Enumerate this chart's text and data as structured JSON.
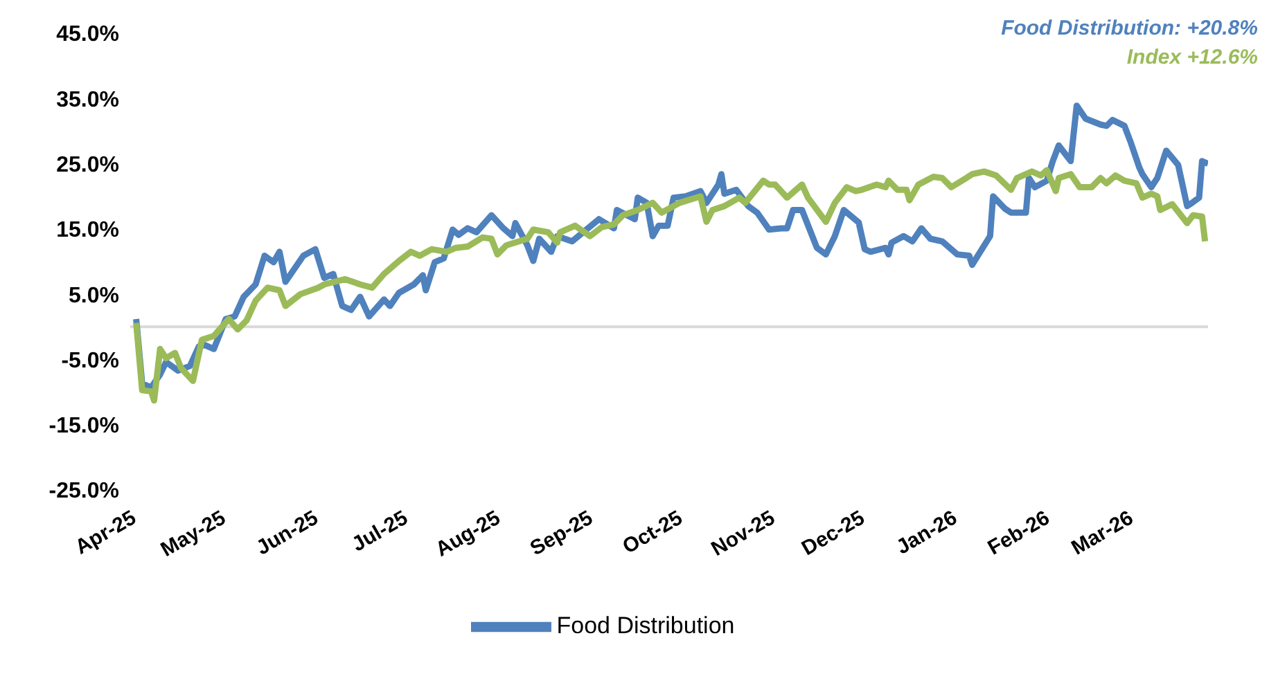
{
  "chart_data": {
    "type": "line",
    "annotations": [
      "Food Distribution: +20.8%",
      "Index +12.6%"
    ],
    "xlim": [
      "2025-04-01",
      "2026-03-28"
    ],
    "xticks": [
      {
        "value": "2025-04-01",
        "label": "Apr-25"
      },
      {
        "value": "2025-05-01",
        "label": "May-25"
      },
      {
        "value": "2025-06-01",
        "label": "Jun-25"
      },
      {
        "value": "2025-07-01",
        "label": "Jul-25"
      },
      {
        "value": "2025-08-01",
        "label": "Aug-25"
      },
      {
        "value": "2025-09-01",
        "label": "Sep-25"
      },
      {
        "value": "2025-10-01",
        "label": "Oct-25"
      },
      {
        "value": "2025-11-01",
        "label": "Nov-25"
      },
      {
        "value": "2025-12-01",
        "label": "Dec-25"
      },
      {
        "value": "2026-01-01",
        "label": "Jan-26"
      },
      {
        "value": "2026-02-01",
        "label": "Feb-26"
      },
      {
        "value": "2026-03-01",
        "label": "Mar-26"
      }
    ],
    "ylim": [
      -25,
      45
    ],
    "yticks": [
      {
        "value": -25,
        "label": "-25.0%"
      },
      {
        "value": -15,
        "label": "-15.0%"
      },
      {
        "value": -5,
        "label": "-5.0%"
      },
      {
        "value": 5,
        "label": "5.0%"
      },
      {
        "value": 15,
        "label": "15.0%"
      },
      {
        "value": 25,
        "label": "25.0%"
      },
      {
        "value": 35,
        "label": "35.0%"
      },
      {
        "value": 45,
        "label": "45.0%"
      }
    ],
    "grid": false,
    "legend": "bottom",
    "marker": "none",
    "line_style": "solid",
    "series": [
      {
        "name": "Food Distribution",
        "color": "#4f81bd",
        "x": [
          "2025-04-03",
          "2025-04-05",
          "2025-04-08",
          "2025-04-11",
          "2025-04-13",
          "2025-04-17",
          "2025-04-21",
          "2025-04-24",
          "2025-04-26",
          "2025-04-29",
          "2025-05-03",
          "2025-05-06",
          "2025-05-09",
          "2025-05-13",
          "2025-05-16",
          "2025-05-19",
          "2025-05-21",
          "2025-05-23",
          "2025-05-29",
          "2025-06-02",
          "2025-06-05",
          "2025-06-08",
          "2025-06-11",
          "2025-06-14",
          "2025-06-17",
          "2025-06-20",
          "2025-06-25",
          "2025-06-27",
          "2025-06-30",
          "2025-07-05",
          "2025-07-08",
          "2025-07-09",
          "2025-07-12",
          "2025-07-15",
          "2025-07-18",
          "2025-07-20",
          "2025-07-23",
          "2025-07-26",
          "2025-07-31",
          "2025-08-04",
          "2025-08-07",
          "2025-08-08",
          "2025-08-12",
          "2025-08-14",
          "2025-08-16",
          "2025-08-20",
          "2025-08-22",
          "2025-08-27",
          "2025-09-05",
          "2025-09-10",
          "2025-09-11",
          "2025-09-17",
          "2025-09-18",
          "2025-09-21",
          "2025-09-23",
          "2025-09-25",
          "2025-09-28",
          "2025-09-30",
          "2025-10-04",
          "2025-10-09",
          "2025-10-11",
          "2025-10-15",
          "2025-10-16",
          "2025-10-17",
          "2025-10-21",
          "2025-10-25",
          "2025-10-28",
          "2025-11-01",
          "2025-11-05",
          "2025-11-07",
          "2025-11-09",
          "2025-11-12",
          "2025-11-17",
          "2025-11-20",
          "2025-11-23",
          "2025-11-26",
          "2025-12-01",
          "2025-12-03",
          "2025-12-05",
          "2025-12-10",
          "2025-12-11",
          "2025-12-12",
          "2025-12-16",
          "2025-12-19",
          "2025-12-22",
          "2025-12-25",
          "2025-12-29",
          "2026-01-03",
          "2026-01-07",
          "2026-01-08",
          "2026-01-14",
          "2026-01-15",
          "2026-01-19",
          "2026-01-21",
          "2026-01-26",
          "2026-01-27",
          "2026-01-29",
          "2026-02-02",
          "2026-02-04",
          "2026-02-06",
          "2026-02-10",
          "2026-02-12",
          "2026-02-15",
          "2026-02-20",
          "2026-02-22",
          "2026-02-24",
          "2026-02-28",
          "2026-03-02",
          "2026-03-05",
          "2026-03-06",
          "2026-03-09",
          "2026-03-11",
          "2026-03-14",
          "2026-03-18",
          "2026-03-21",
          "2026-03-22",
          "2026-03-25",
          "2026-03-26",
          "2026-03-28"
        ],
        "values": [
          1.2,
          -8.7,
          -9.3,
          -7.3,
          -5.4,
          -6.7,
          -6.0,
          -3.0,
          -2.8,
          -3.4,
          1.2,
          1.6,
          4.6,
          6.5,
          10.9,
          9.9,
          11.5,
          6.9,
          10.9,
          11.9,
          7.5,
          8.1,
          3.2,
          2.6,
          4.6,
          1.6,
          4.2,
          3.2,
          5.2,
          6.5,
          7.9,
          5.6,
          9.9,
          10.5,
          14.9,
          14.1,
          15.1,
          14.5,
          17.1,
          15.1,
          13.9,
          15.9,
          12.5,
          10.1,
          13.5,
          11.5,
          13.9,
          13.1,
          16.5,
          15.1,
          17.9,
          16.5,
          19.8,
          19.0,
          13.9,
          15.5,
          15.5,
          19.8,
          20.0,
          20.8,
          19.0,
          21.8,
          23.4,
          20.4,
          21.0,
          18.5,
          17.5,
          14.9,
          15.1,
          15.1,
          17.9,
          17.9,
          12.1,
          11.1,
          13.9,
          17.9,
          16.0,
          11.9,
          11.5,
          12.1,
          11.1,
          12.9,
          13.9,
          13.1,
          15.1,
          13.5,
          13.1,
          11.1,
          10.9,
          9.5,
          13.9,
          20.0,
          18.1,
          17.5,
          17.5,
          22.8,
          21.4,
          22.4,
          25.4,
          27.8,
          25.4,
          33.9,
          31.9,
          31.0,
          30.8,
          31.7,
          30.8,
          28.4,
          24.4,
          23.4,
          21.4,
          22.8,
          27.0,
          24.8,
          18.5,
          18.8,
          19.8,
          25.4,
          25.0
        ]
      },
      {
        "color": "#9bbb59",
        "x": [
          "2025-04-03",
          "2025-04-05",
          "2025-04-08",
          "2025-04-09",
          "2025-04-11",
          "2025-04-13",
          "2025-04-16",
          "2025-04-18",
          "2025-04-22",
          "2025-04-25",
          "2025-04-29",
          "2025-05-04",
          "2025-05-07",
          "2025-05-10",
          "2025-05-13",
          "2025-05-17",
          "2025-05-21",
          "2025-05-23",
          "2025-05-28",
          "2025-06-03",
          "2025-06-05",
          "2025-06-12",
          "2025-06-17",
          "2025-06-21",
          "2025-06-25",
          "2025-06-30",
          "2025-07-04",
          "2025-07-07",
          "2025-07-11",
          "2025-07-16",
          "2025-07-19",
          "2025-07-23",
          "2025-07-28",
          "2025-07-31",
          "2025-08-02",
          "2025-08-05",
          "2025-08-12",
          "2025-08-14",
          "2025-08-19",
          "2025-08-22",
          "2025-08-23",
          "2025-08-28",
          "2025-09-02",
          "2025-09-06",
          "2025-09-10",
          "2025-09-13",
          "2025-09-18",
          "2025-09-23",
          "2025-09-26",
          "2025-10-02",
          "2025-10-09",
          "2025-10-11",
          "2025-10-13",
          "2025-10-17",
          "2025-10-22",
          "2025-10-24",
          "2025-10-30",
          "2025-11-01",
          "2025-11-03",
          "2025-11-07",
          "2025-11-12",
          "2025-11-14",
          "2025-11-20",
          "2025-11-23",
          "2025-11-27",
          "2025-11-30",
          "2025-12-02",
          "2025-12-07",
          "2025-12-10",
          "2025-12-11",
          "2025-12-14",
          "2025-12-17",
          "2025-12-18",
          "2025-12-21",
          "2025-12-26",
          "2025-12-29",
          "2026-01-01",
          "2026-01-06",
          "2026-01-08",
          "2026-01-12",
          "2026-01-16",
          "2026-01-21",
          "2026-01-23",
          "2026-01-28",
          "2026-01-31",
          "2026-02-02",
          "2026-02-05",
          "2026-02-06",
          "2026-02-10",
          "2026-02-13",
          "2026-02-17",
          "2026-02-20",
          "2026-02-22",
          "2026-02-25",
          "2026-02-28",
          "2026-03-04",
          "2026-03-06",
          "2026-03-09",
          "2026-03-11",
          "2026-03-12",
          "2026-03-16",
          "2026-03-21",
          "2026-03-23",
          "2026-03-26",
          "2026-03-27"
        ],
        "values": [
          0.6,
          -9.7,
          -9.9,
          -11.3,
          -3.4,
          -4.8,
          -4.0,
          -6.3,
          -8.3,
          -2.0,
          -1.4,
          1.2,
          -0.4,
          1.0,
          4.0,
          6.0,
          5.6,
          3.2,
          5.0,
          6.0,
          6.5,
          7.3,
          6.5,
          6.0,
          8.1,
          10.1,
          11.5,
          10.9,
          11.9,
          11.5,
          12.1,
          12.3,
          13.7,
          13.5,
          11.1,
          12.5,
          13.5,
          14.9,
          14.5,
          12.9,
          14.5,
          15.5,
          13.9,
          15.3,
          15.7,
          17.1,
          17.9,
          19.0,
          17.5,
          19.0,
          20.0,
          16.1,
          17.9,
          18.5,
          19.8,
          19.0,
          22.4,
          21.8,
          21.8,
          19.8,
          21.8,
          19.8,
          16.1,
          19.0,
          21.4,
          20.8,
          21.0,
          21.8,
          21.4,
          22.4,
          21.0,
          21.0,
          19.4,
          21.8,
          23.0,
          22.8,
          21.4,
          22.8,
          23.4,
          23.8,
          23.2,
          21.0,
          22.8,
          23.8,
          23.2,
          24.0,
          20.8,
          22.8,
          23.4,
          21.4,
          21.4,
          22.8,
          22.0,
          23.2,
          22.4,
          22.0,
          19.8,
          20.4,
          20.0,
          17.9,
          18.8,
          15.9,
          17.1,
          16.9,
          13.1
        ]
      }
    ]
  }
}
